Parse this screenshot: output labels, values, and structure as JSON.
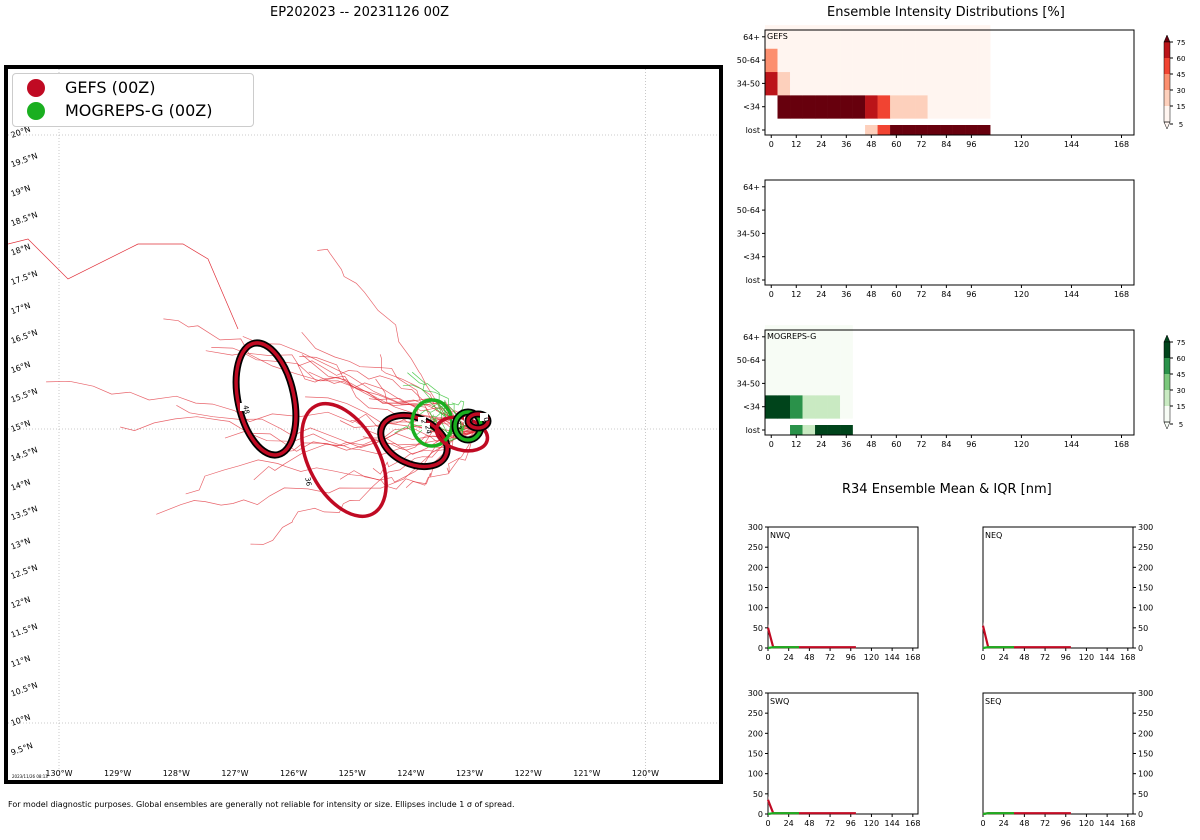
{
  "header": {
    "title": "EP202023 -- 20231126 00Z"
  },
  "legend": [
    {
      "label": "GEFS (00Z)",
      "color": "#c00a23"
    },
    {
      "label": "MOGREPS-G (00Z)",
      "color": "#1aaf20"
    }
  ],
  "map": {
    "lon_labels": [
      "130°W",
      "129°W",
      "128°W",
      "127°W",
      "126°W",
      "125°W",
      "124°W",
      "123°W",
      "122°W",
      "121°W",
      "120°W"
    ],
    "lat_labels": [
      "20°N",
      "19.5°N",
      "19°N",
      "18.5°N",
      "18°N",
      "17.5°N",
      "17°N",
      "16.5°N",
      "16°N",
      "15.5°N",
      "15°N",
      "14.5°N",
      "14°N",
      "13.5°N",
      "13°N",
      "12.5°N",
      "12°N",
      "11.5°N",
      "11°N",
      "10.5°N",
      "10°N",
      "9.5°N"
    ],
    "stamp": "2023/11/26 08:13",
    "ellipse_labels": [
      "48",
      "36",
      "24",
      "24",
      "12",
      "12",
      "0"
    ]
  },
  "footnote": "For model diagnostic purposes. Global ensembles are generally not reliable for intensity or size. Ellipses include 1 σ of spread.",
  "intensity": {
    "title": "Ensemble Intensity Distributions [%]",
    "panels": [
      "GEFS",
      "",
      "MOGREPS-G"
    ],
    "row_labels": [
      "64+",
      "50-64",
      "34-50",
      "<34",
      "lost"
    ],
    "x_ticks": [
      "0",
      "12",
      "24",
      "36",
      "48",
      "60",
      "72",
      "84",
      "96",
      "120",
      "144",
      "168"
    ],
    "cbar_ticks": [
      "75",
      "60",
      "45",
      "30",
      "15",
      "5"
    ],
    "colors": {
      "red": "#67000d",
      "green": "#00441b"
    }
  },
  "r34": {
    "title": "R34 Ensemble Mean & IQR [nm]",
    "quadrants": [
      "NWQ",
      "NEQ",
      "SWQ",
      "SEQ"
    ],
    "y_ticks": [
      "300",
      "250",
      "200",
      "150",
      "100",
      "50",
      "0"
    ],
    "x_ticks": [
      "0",
      "24",
      "48",
      "72",
      "96",
      "120",
      "144",
      "168"
    ]
  },
  "chart_data": [
    {
      "type": "heatmap",
      "title": "GEFS",
      "x": [
        0,
        6,
        12,
        18,
        24,
        30,
        36,
        42,
        48,
        54,
        60,
        66,
        72,
        78,
        84,
        90,
        96,
        102
      ],
      "rows": [
        "lost",
        "<34",
        "34-50",
        "50-64",
        "64+"
      ],
      "values": [
        [
          0,
          0,
          0,
          0,
          0,
          0,
          0,
          0,
          25,
          55,
          85,
          85,
          85,
          85,
          85,
          85,
          85,
          85
        ],
        [
          0,
          85,
          85,
          85,
          85,
          85,
          85,
          75,
          60,
          55,
          15,
          15,
          15,
          5,
          5,
          5,
          5,
          5
        ],
        [
          70,
          15,
          5,
          5,
          5,
          5,
          5,
          5,
          5,
          5,
          5,
          5,
          5,
          5,
          5,
          5,
          5,
          5
        ],
        [
          30,
          5,
          5,
          5,
          5,
          5,
          5,
          5,
          5,
          5,
          5,
          5,
          5,
          5,
          5,
          5,
          5,
          5
        ],
        [
          5,
          5,
          5,
          5,
          5,
          5,
          5,
          5,
          5,
          5,
          5,
          5,
          5,
          5,
          5,
          5,
          5,
          5
        ]
      ],
      "vmin": 5,
      "vmax": 75
    },
    {
      "type": "heatmap",
      "title": "",
      "x": [],
      "rows": [
        "lost",
        "<34",
        "34-50",
        "50-64",
        "64+"
      ],
      "values": []
    },
    {
      "type": "heatmap",
      "title": "MOGREPS-G",
      "x": [
        0,
        6,
        12,
        18,
        24,
        30,
        36
      ],
      "rows": [
        "lost",
        "<34",
        "34-50",
        "50-64",
        "64+"
      ],
      "values": [
        [
          0,
          0,
          50,
          25,
          85,
          85,
          85
        ],
        [
          85,
          85,
          50,
          25,
          25,
          25,
          10
        ],
        [
          2,
          2,
          2,
          2,
          2,
          2,
          2
        ],
        [
          2,
          2,
          2,
          2,
          2,
          2,
          2
        ],
        [
          2,
          2,
          2,
          2,
          2,
          2,
          2
        ]
      ],
      "vmin": 5,
      "vmax": 75
    },
    {
      "type": "line",
      "title": "NWQ",
      "xlim": [
        0,
        174
      ],
      "ylim": [
        0,
        300
      ],
      "series": [
        {
          "name": "GEFS",
          "x": [
            0,
            6,
            12,
            24,
            36,
            48,
            60,
            72,
            84,
            96,
            102
          ],
          "y": [
            50,
            2,
            2,
            2,
            2,
            2,
            2,
            2,
            2,
            2,
            2
          ]
        },
        {
          "name": "MOGREPS-G",
          "x": [
            0,
            6,
            12,
            24,
            36
          ],
          "y": [
            0,
            2,
            2,
            2,
            2
          ]
        }
      ]
    },
    {
      "type": "line",
      "title": "NEQ",
      "xlim": [
        0,
        174
      ],
      "ylim": [
        0,
        300
      ],
      "series": [
        {
          "name": "GEFS",
          "x": [
            0,
            6,
            12,
            24,
            36,
            48,
            60,
            72,
            84,
            96,
            102
          ],
          "y": [
            55,
            2,
            2,
            2,
            2,
            2,
            2,
            2,
            2,
            2,
            2
          ]
        },
        {
          "name": "MOGREPS-G",
          "x": [
            0,
            6,
            12,
            24,
            36
          ],
          "y": [
            0,
            2,
            2,
            2,
            2
          ]
        }
      ]
    },
    {
      "type": "line",
      "title": "SWQ",
      "xlim": [
        0,
        174
      ],
      "ylim": [
        0,
        300
      ],
      "series": [
        {
          "name": "GEFS",
          "x": [
            0,
            6,
            12,
            24,
            36,
            48,
            60,
            72,
            84,
            96,
            102
          ],
          "y": [
            35,
            2,
            2,
            2,
            2,
            2,
            2,
            2,
            2,
            2,
            2
          ]
        },
        {
          "name": "MOGREPS-G",
          "x": [
            0,
            6,
            12,
            24,
            36
          ],
          "y": [
            0,
            2,
            2,
            2,
            2
          ]
        }
      ]
    },
    {
      "type": "line",
      "title": "SEQ",
      "xlim": [
        0,
        174
      ],
      "ylim": [
        0,
        300
      ],
      "series": [
        {
          "name": "GEFS",
          "x": [
            0,
            6,
            12,
            24,
            36,
            48,
            60,
            72,
            84,
            96,
            102
          ],
          "y": [
            0,
            2,
            2,
            2,
            2,
            2,
            2,
            2,
            2,
            2,
            2
          ]
        },
        {
          "name": "MOGREPS-G",
          "x": [
            0,
            6,
            12,
            24,
            36
          ],
          "y": [
            0,
            2,
            2,
            2,
            2
          ]
        }
      ]
    }
  ]
}
